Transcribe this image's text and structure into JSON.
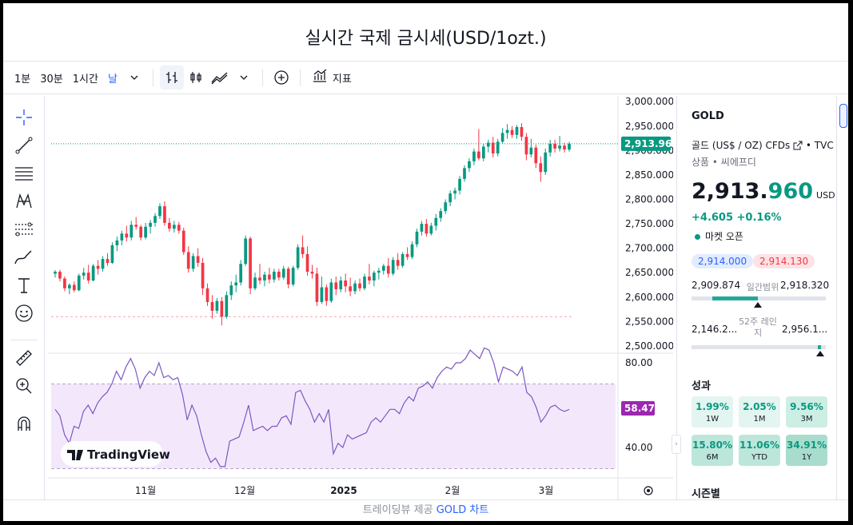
{
  "page": {
    "title": "실시간 국제 금시세(USD/1ozt.)"
  },
  "toolbar": {
    "intervals": [
      "1분",
      "30분",
      "1시간",
      "날"
    ],
    "active_interval": "날",
    "indicators_label": "지표",
    "icons": [
      "chevron-down-icon",
      "compare-bars-icon",
      "candles-icon",
      "area-chart-icon",
      "chevron-down-icon",
      "add-circle-icon",
      "indicators-icon"
    ]
  },
  "tools": [
    "crosshair-icon",
    "trendline-icon",
    "fib-lines-icon",
    "pattern-icon",
    "forecast-icon",
    "brush-icon",
    "text-icon",
    "emoji-icon",
    "ruler-icon",
    "zoom-in-icon",
    "magnet-icon"
  ],
  "chart_data": {
    "type": "candlestick",
    "price_axis": {
      "ticks": [
        "3,000.000",
        "2,950.000",
        "2,900.000",
        "2,850.000",
        "2,800.000",
        "2,750.000",
        "2,700.000",
        "2,650.000",
        "2,600.000",
        "2,550.000",
        "2,500.000"
      ],
      "range": [
        2495,
        3002
      ]
    },
    "x_ticks": [
      "11월",
      "12월",
      "2025",
      "2월",
      "3월"
    ],
    "last_price_label": "2,913.960",
    "support_level": 2560,
    "candles": [
      [
        2648,
        2655,
        2640,
        2652
      ],
      [
        2652,
        2656,
        2632,
        2638
      ],
      [
        2638,
        2642,
        2612,
        2618
      ],
      [
        2618,
        2628,
        2606,
        2625
      ],
      [
        2625,
        2632,
        2610,
        2614
      ],
      [
        2614,
        2648,
        2612,
        2644
      ],
      [
        2644,
        2660,
        2636,
        2650
      ],
      [
        2650,
        2666,
        2628,
        2634
      ],
      [
        2634,
        2668,
        2632,
        2664
      ],
      [
        2664,
        2676,
        2646,
        2658
      ],
      [
        2658,
        2684,
        2652,
        2678
      ],
      [
        2678,
        2690,
        2664,
        2670
      ],
      [
        2670,
        2712,
        2668,
        2706
      ],
      [
        2706,
        2724,
        2694,
        2716
      ],
      [
        2716,
        2736,
        2706,
        2730
      ],
      [
        2730,
        2746,
        2714,
        2722
      ],
      [
        2722,
        2756,
        2716,
        2748
      ],
      [
        2748,
        2764,
        2738,
        2744
      ],
      [
        2744,
        2748,
        2716,
        2722
      ],
      [
        2722,
        2752,
        2718,
        2744
      ],
      [
        2744,
        2758,
        2730,
        2752
      ],
      [
        2752,
        2772,
        2744,
        2766
      ],
      [
        2766,
        2792,
        2760,
        2786
      ],
      [
        2786,
        2796,
        2746,
        2752
      ],
      [
        2752,
        2762,
        2734,
        2740
      ],
      [
        2740,
        2756,
        2732,
        2748
      ],
      [
        2748,
        2754,
        2730,
        2736
      ],
      [
        2736,
        2742,
        2686,
        2692
      ],
      [
        2692,
        2704,
        2650,
        2658
      ],
      [
        2658,
        2690,
        2652,
        2684
      ],
      [
        2684,
        2700,
        2662,
        2670
      ],
      [
        2670,
        2680,
        2604,
        2618
      ],
      [
        2618,
        2628,
        2582,
        2590
      ],
      [
        2590,
        2604,
        2556,
        2572
      ],
      [
        2572,
        2598,
        2566,
        2592
      ],
      [
        2592,
        2600,
        2542,
        2560
      ],
      [
        2560,
        2612,
        2556,
        2604
      ],
      [
        2604,
        2632,
        2594,
        2624
      ],
      [
        2624,
        2646,
        2610,
        2630
      ],
      [
        2630,
        2676,
        2624,
        2668
      ],
      [
        2668,
        2726,
        2664,
        2720
      ],
      [
        2720,
        2724,
        2606,
        2618
      ],
      [
        2618,
        2650,
        2614,
        2640
      ],
      [
        2640,
        2668,
        2626,
        2634
      ],
      [
        2634,
        2652,
        2622,
        2646
      ],
      [
        2646,
        2660,
        2628,
        2636
      ],
      [
        2636,
        2658,
        2630,
        2652
      ],
      [
        2652,
        2658,
        2634,
        2640
      ],
      [
        2640,
        2664,
        2636,
        2658
      ],
      [
        2658,
        2662,
        2618,
        2626
      ],
      [
        2626,
        2664,
        2622,
        2660
      ],
      [
        2660,
        2708,
        2656,
        2702
      ],
      [
        2702,
        2726,
        2680,
        2688
      ],
      [
        2688,
        2704,
        2644,
        2652
      ],
      [
        2652,
        2666,
        2638,
        2648
      ],
      [
        2648,
        2660,
        2582,
        2590
      ],
      [
        2590,
        2642,
        2586,
        2620
      ],
      [
        2620,
        2626,
        2582,
        2592
      ],
      [
        2592,
        2638,
        2588,
        2630
      ],
      [
        2630,
        2642,
        2604,
        2616
      ],
      [
        2616,
        2642,
        2610,
        2634
      ],
      [
        2634,
        2648,
        2610,
        2622
      ],
      [
        2622,
        2640,
        2602,
        2612
      ],
      [
        2612,
        2634,
        2606,
        2628
      ],
      [
        2628,
        2638,
        2612,
        2618
      ],
      [
        2618,
        2648,
        2614,
        2642
      ],
      [
        2642,
        2668,
        2626,
        2634
      ],
      [
        2634,
        2654,
        2622,
        2650
      ],
      [
        2650,
        2660,
        2636,
        2654
      ],
      [
        2654,
        2668,
        2646,
        2664
      ],
      [
        2664,
        2680,
        2640,
        2648
      ],
      [
        2648,
        2682,
        2644,
        2676
      ],
      [
        2676,
        2690,
        2656,
        2664
      ],
      [
        2664,
        2692,
        2660,
        2688
      ],
      [
        2688,
        2702,
        2676,
        2682
      ],
      [
        2682,
        2714,
        2678,
        2708
      ],
      [
        2708,
        2740,
        2702,
        2734
      ],
      [
        2734,
        2756,
        2726,
        2750
      ],
      [
        2750,
        2760,
        2724,
        2730
      ],
      [
        2730,
        2752,
        2726,
        2746
      ],
      [
        2746,
        2770,
        2736,
        2762
      ],
      [
        2762,
        2782,
        2754,
        2776
      ],
      [
        2776,
        2800,
        2770,
        2794
      ],
      [
        2794,
        2818,
        2786,
        2812
      ],
      [
        2812,
        2824,
        2800,
        2818
      ],
      [
        2818,
        2848,
        2810,
        2842
      ],
      [
        2842,
        2870,
        2836,
        2864
      ],
      [
        2864,
        2884,
        2856,
        2878
      ],
      [
        2878,
        2904,
        2870,
        2898
      ],
      [
        2898,
        2944,
        2880,
        2884
      ],
      [
        2884,
        2914,
        2878,
        2908
      ],
      [
        2908,
        2922,
        2896,
        2916
      ],
      [
        2916,
        2928,
        2886,
        2894
      ],
      [
        2894,
        2924,
        2888,
        2918
      ],
      [
        2918,
        2946,
        2914,
        2936
      ],
      [
        2936,
        2954,
        2924,
        2942
      ],
      [
        2942,
        2950,
        2926,
        2932
      ],
      [
        2932,
        2952,
        2924,
        2948
      ],
      [
        2948,
        2956,
        2920,
        2928
      ],
      [
        2928,
        2936,
        2880,
        2892
      ],
      [
        2892,
        2924,
        2886,
        2906
      ],
      [
        2906,
        2912,
        2864,
        2874
      ],
      [
        2874,
        2888,
        2836,
        2856
      ],
      [
        2856,
        2904,
        2850,
        2896
      ],
      [
        2896,
        2922,
        2888,
        2914
      ],
      [
        2914,
        2922,
        2896,
        2904
      ],
      [
        2904,
        2930,
        2898,
        2910
      ],
      [
        2910,
        2916,
        2896,
        2902
      ],
      [
        2902,
        2918,
        2898,
        2914
      ]
    ],
    "rsi": {
      "label": "58.47",
      "ticks": [
        "80.00",
        "40.00"
      ],
      "upper": 70,
      "lower": 30,
      "values": [
        58,
        55,
        46,
        42,
        50,
        49,
        57,
        60,
        56,
        61,
        64,
        66,
        70,
        76,
        72,
        78,
        82,
        77,
        68,
        73,
        76,
        74,
        80,
        73,
        74,
        72,
        73,
        65,
        53,
        60,
        55,
        46,
        38,
        33,
        35,
        31,
        31,
        43,
        44,
        45,
        52,
        60,
        48,
        49,
        50,
        48,
        50,
        50,
        54,
        55,
        51,
        66,
        67,
        62,
        58,
        52,
        56,
        52,
        58,
        37,
        42,
        40,
        46,
        44,
        45,
        46,
        47,
        52,
        54,
        52,
        55,
        58,
        58,
        56,
        61,
        64,
        62,
        68,
        69,
        71,
        68,
        73,
        76,
        78,
        77,
        80,
        80,
        82,
        86,
        84,
        82,
        87,
        86,
        80,
        71,
        78,
        77,
        76,
        74,
        78,
        66,
        64,
        59,
        52,
        55,
        59,
        60,
        58,
        57,
        58
      ]
    },
    "watermark": "TradingView"
  },
  "panel": {
    "symbol": "GOLD",
    "description": "골드 (US$ / OZ) CFDs",
    "exchange": "• TVC",
    "type_line": "상품 • 씨에프디",
    "price_int": "2,913.",
    "price_dec": "960",
    "currency": "USD",
    "change": "+4.605  +0.16%",
    "market_status": "마켓 오픈",
    "bid": "2,914.000",
    "ask": "2,914.130",
    "day_low": "2,909.874",
    "day_label": "일간범위",
    "day_high": "2,918.320",
    "w52_low": "2,146.2...",
    "w52_label": "52주 레인지",
    "w52_high": "2,956.1...",
    "perf_title": "성과",
    "perf": [
      {
        "v": "1.99%",
        "p": "1W"
      },
      {
        "v": "2.05%",
        "p": "1M"
      },
      {
        "v": "9.56%",
        "p": "3M"
      },
      {
        "v": "15.80%",
        "p": "6M"
      },
      {
        "v": "11.06%",
        "p": "YTD"
      },
      {
        "v": "34.91%",
        "p": "1Y"
      }
    ],
    "season_title": "시즌별"
  },
  "footer": {
    "prefix": "트레이딩뷰 제공",
    "link": "GOLD 차트"
  },
  "colors": {
    "up": "#089981",
    "down": "#f23645",
    "rsi": "#7e57c2",
    "accent": "#2962ff"
  }
}
